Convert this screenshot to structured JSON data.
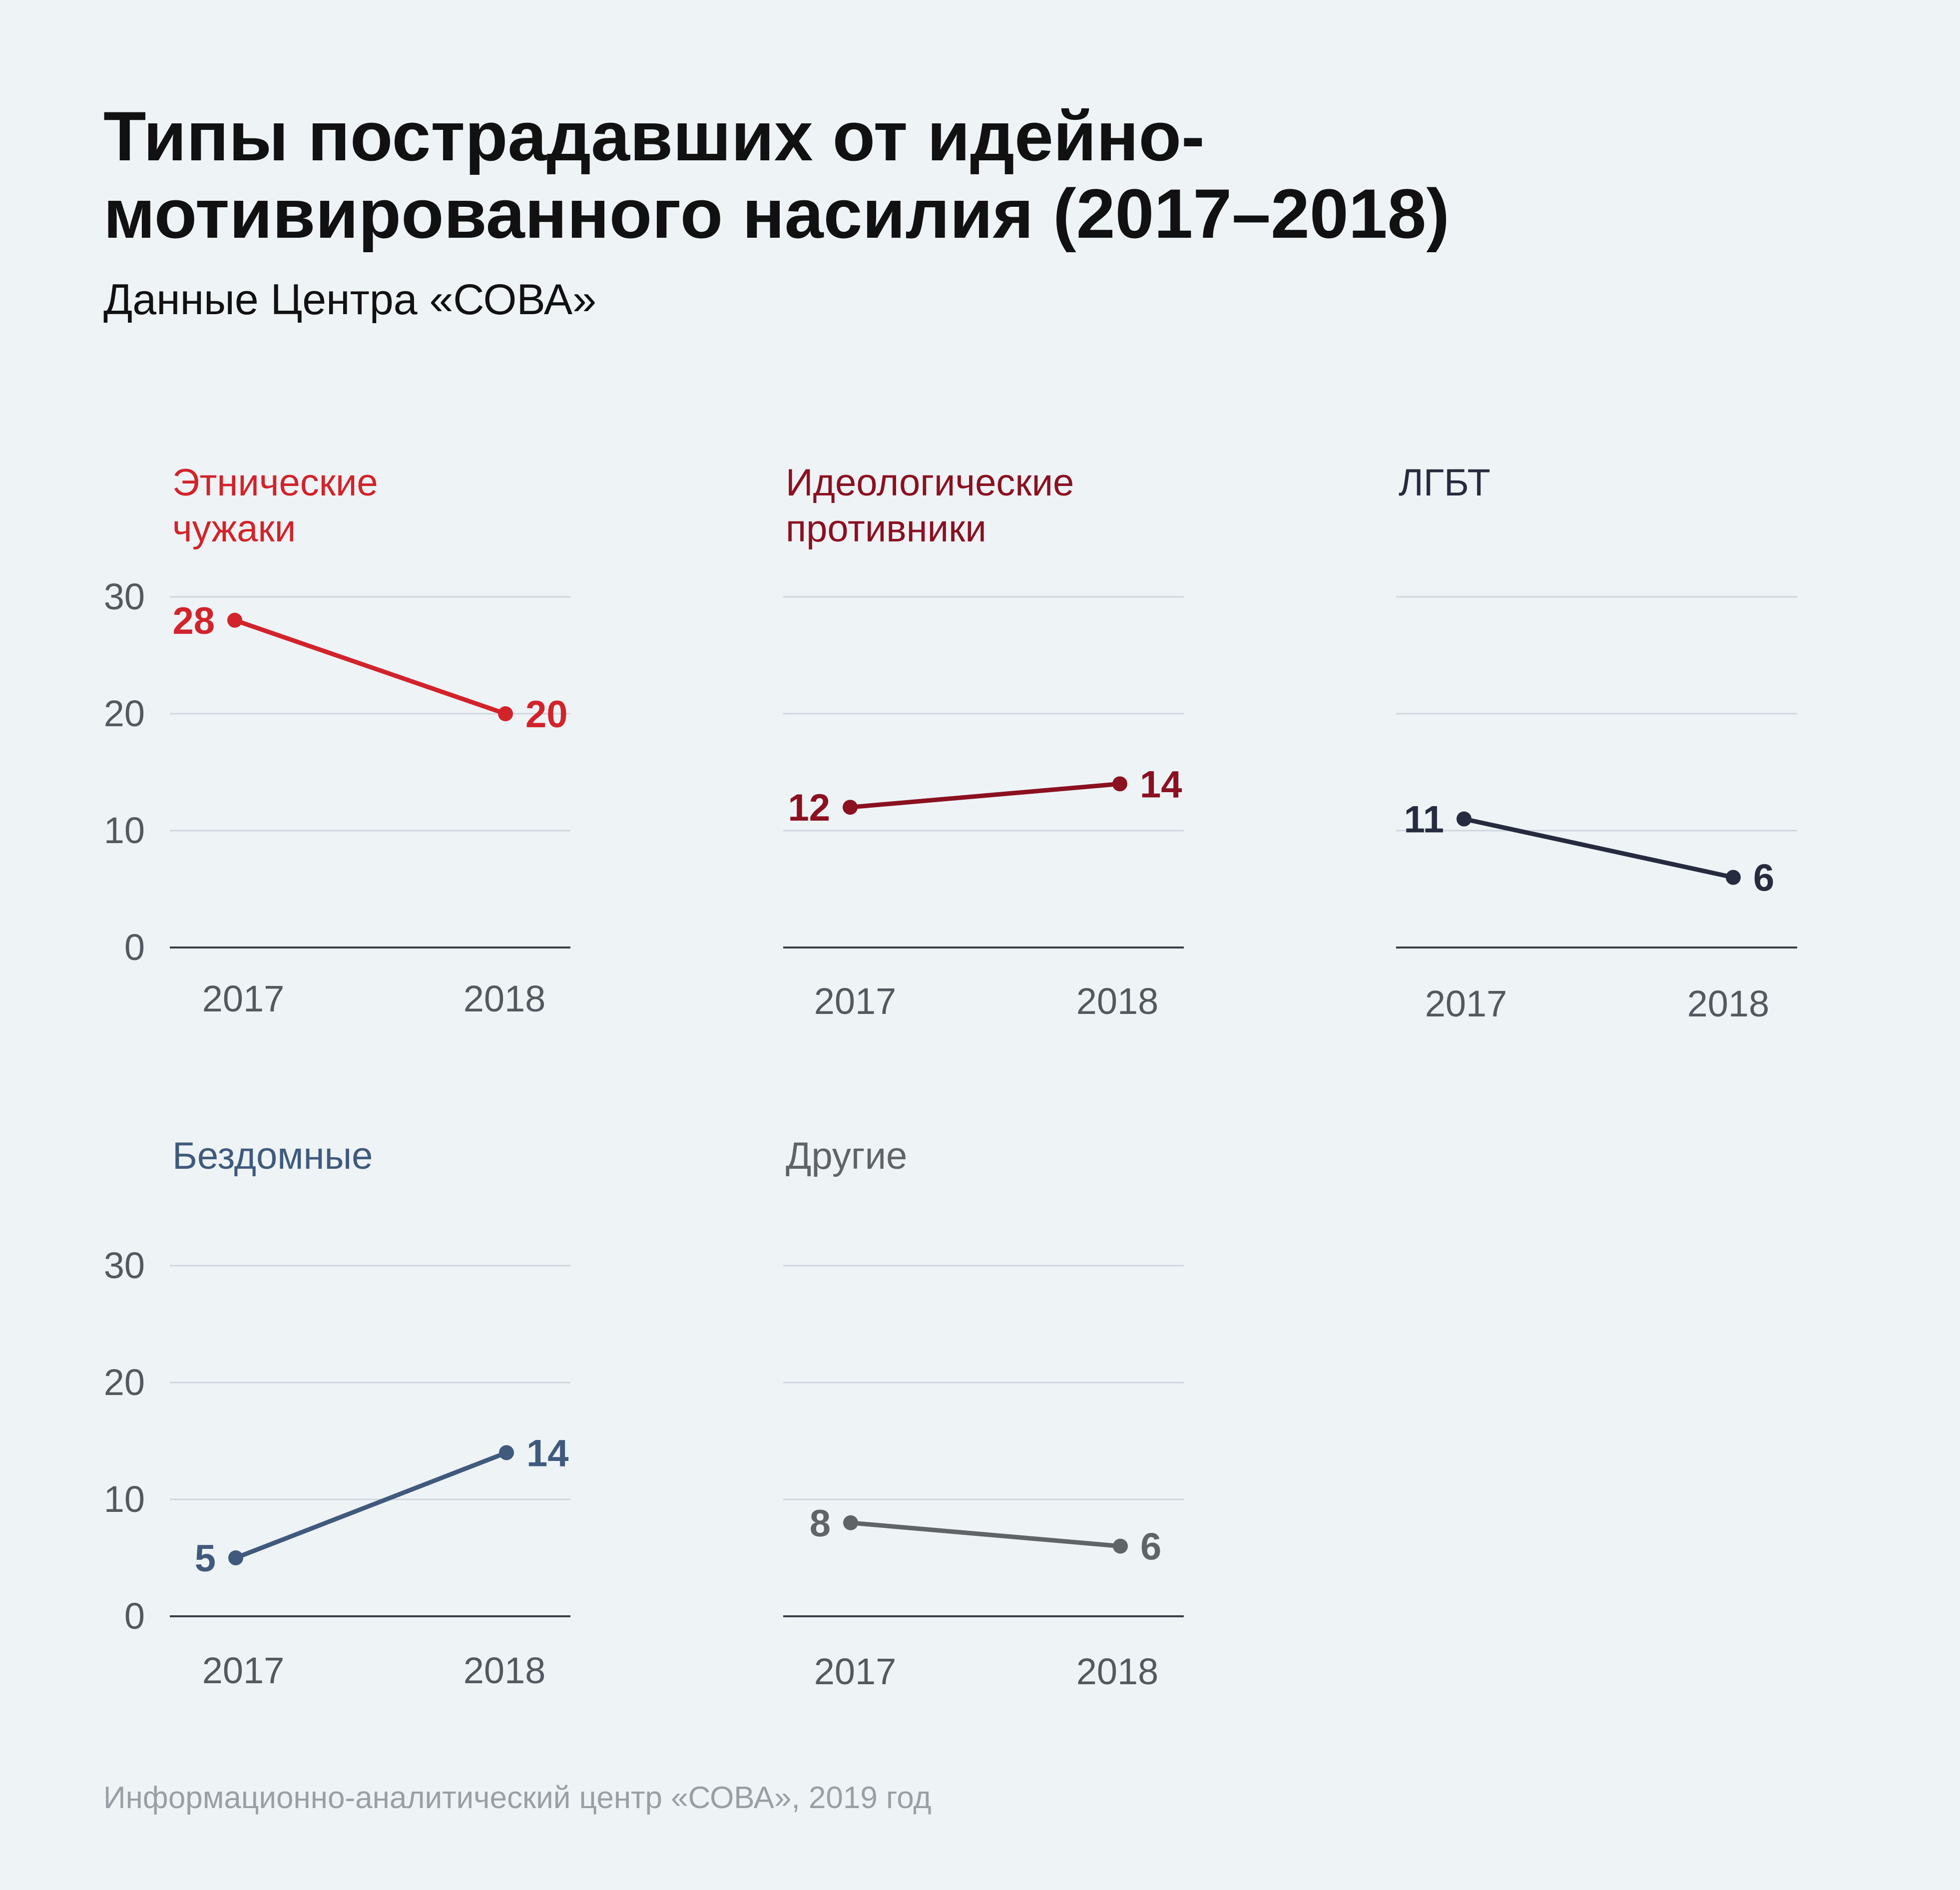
{
  "header": {
    "title_line1": "Типы пострадавших от идейно-",
    "title_line2": "мотивированного насилия (2017–2018)",
    "subtitle": "Данные Центра «СОВА»"
  },
  "footer": {
    "source": "Информационно-аналитический центр «СОВА», 2019 год"
  },
  "chart_data": [
    {
      "type": "line",
      "title": [
        "Этнические",
        "чужаки"
      ],
      "color": "#d2232a",
      "categories": [
        "2017",
        "2018"
      ],
      "values": [
        28,
        20
      ],
      "ylim": [
        0,
        30
      ],
      "yticks": [
        "0",
        "10",
        "20",
        "30"
      ],
      "show_yticks": true
    },
    {
      "type": "line",
      "title": [
        "Идеологические",
        "противники"
      ],
      "color": "#8b1020",
      "categories": [
        "2017",
        "2018"
      ],
      "values": [
        12,
        14
      ],
      "ylim": [
        0,
        30
      ],
      "yticks": [
        "0",
        "10",
        "20",
        "30"
      ],
      "show_yticks": false
    },
    {
      "type": "line",
      "title": [
        "ЛГБТ"
      ],
      "color": "#262b3f",
      "categories": [
        "2017",
        "2018"
      ],
      "values": [
        11,
        6
      ],
      "ylim": [
        0,
        30
      ],
      "yticks": [
        "0",
        "10",
        "20",
        "30"
      ],
      "show_yticks": false
    },
    {
      "type": "line",
      "title": [
        "Бездомные"
      ],
      "color": "#3f5a7c",
      "categories": [
        "2017",
        "2018"
      ],
      "values": [
        5,
        14
      ],
      "ylim": [
        0,
        30
      ],
      "yticks": [
        "0",
        "10",
        "20",
        "30"
      ],
      "show_yticks": true
    },
    {
      "type": "line",
      "title": [
        "Другие"
      ],
      "color": "#616467",
      "categories": [
        "2017",
        "2018"
      ],
      "values": [
        8,
        6
      ],
      "ylim": [
        0,
        30
      ],
      "yticks": [
        "0",
        "10",
        "20",
        "30"
      ],
      "show_yticks": false
    }
  ]
}
